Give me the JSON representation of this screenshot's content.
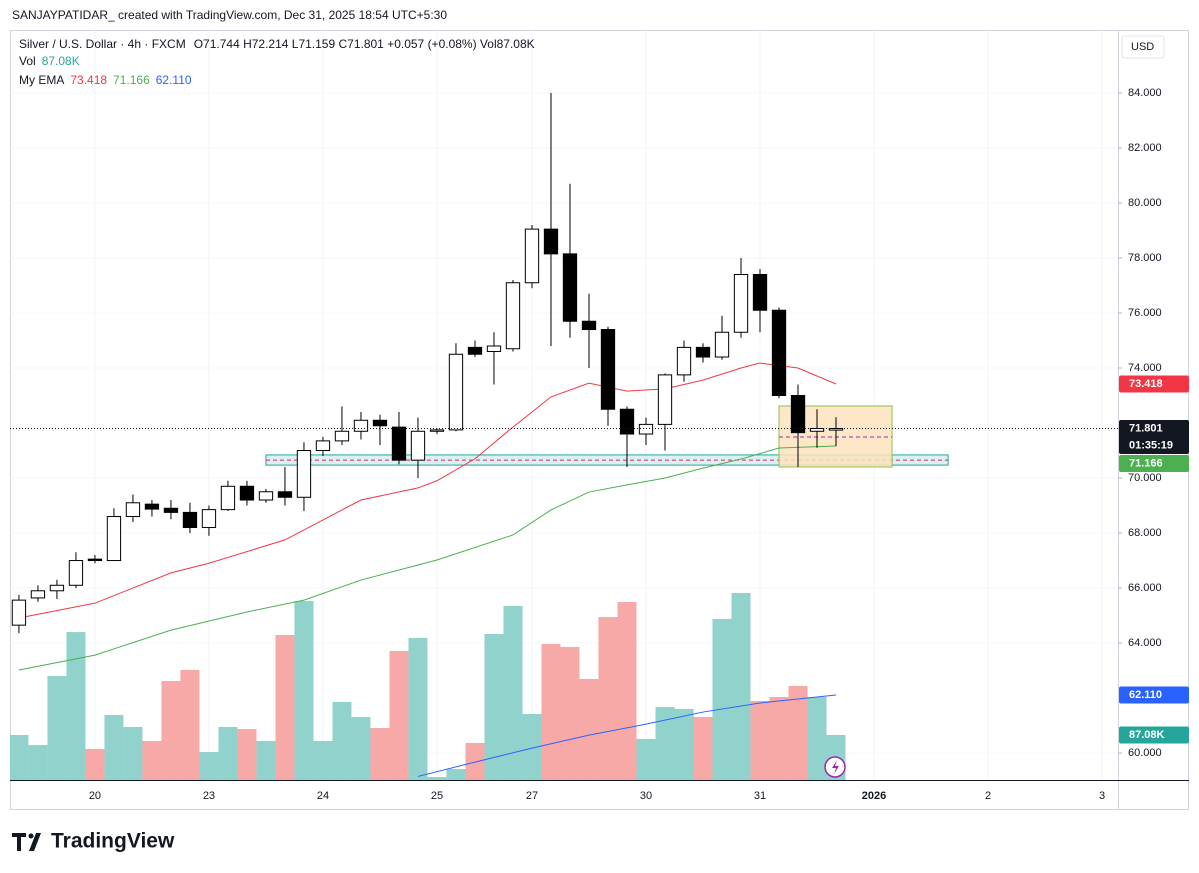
{
  "chart_data": {
    "type": "candlestick",
    "header": "SANJAYPATIDAR_ created with TradingView.com, Dec 31, 2025 18:54 UTC+5:30",
    "title": "Silver / U.S. Dollar · 4h · FXCM",
    "ohlc_text": "O71.744 H72.214 L71.159 C71.801 +0.057 (+0.08%) Vol87.08K",
    "currency": "USD",
    "countdown": "01:35:19",
    "brand": "TradingView",
    "xlim": [
      -0.47,
      57.84
    ],
    "ylim": [
      59.02,
      86.29
    ],
    "x": [
      0,
      1,
      2,
      3,
      4,
      5,
      6,
      7,
      8,
      9,
      10,
      11,
      12,
      13,
      14,
      15,
      16,
      17,
      18,
      19,
      20,
      21,
      22,
      23,
      24,
      25,
      26,
      27,
      28,
      29,
      30,
      31,
      32,
      33,
      34,
      35,
      36,
      37,
      38,
      39,
      40,
      41,
      42,
      43
    ],
    "xticks": [
      {
        "value": 4,
        "label": "20"
      },
      {
        "value": 10,
        "label": "23"
      },
      {
        "value": 16,
        "label": "24"
      },
      {
        "value": 22,
        "label": "25"
      },
      {
        "value": 27,
        "label": "27"
      },
      {
        "value": 33,
        "label": "30"
      },
      {
        "value": 39,
        "label": "31"
      },
      {
        "value": 45,
        "label": "2026"
      },
      {
        "value": 51,
        "label": "2"
      },
      {
        "value": 57,
        "label": "3"
      }
    ],
    "yticks": [
      {
        "value": 60,
        "label": "60.000"
      },
      {
        "value": 64,
        "label": "64.000"
      },
      {
        "value": 66,
        "label": "66.000"
      },
      {
        "value": 68,
        "label": "68.000"
      },
      {
        "value": 70,
        "label": "70.000"
      },
      {
        "value": 74,
        "label": "74.000"
      },
      {
        "value": 76,
        "label": "76.000"
      },
      {
        "value": 78,
        "label": "78.000"
      },
      {
        "value": 80,
        "label": "80.000"
      },
      {
        "value": 82,
        "label": "82.000"
      },
      {
        "value": 84,
        "label": "84.000"
      }
    ],
    "grid": true,
    "up_color": "#ffffff",
    "down_color": "#000000",
    "open": [
      64.65,
      65.64,
      65.9,
      66.1,
      67.05,
      67.0,
      68.6,
      69.05,
      68.9,
      68.75,
      68.2,
      68.85,
      69.7,
      69.2,
      69.5,
      69.3,
      71.0,
      71.35,
      71.7,
      72.1,
      71.85,
      70.65,
      71.7,
      71.75,
      74.75,
      74.6,
      74.7,
      77.1,
      79.05,
      78.15,
      75.7,
      75.4,
      72.5,
      71.6,
      71.95,
      73.75,
      74.75,
      74.4,
      75.3,
      77.4,
      76.1,
      73.0,
      71.7,
      71.744
    ],
    "high": [
      65.75,
      66.1,
      66.3,
      67.3,
      67.2,
      68.9,
      69.4,
      69.2,
      69.2,
      69.1,
      69.0,
      69.9,
      69.9,
      69.6,
      70.4,
      71.3,
      71.5,
      72.6,
      72.4,
      72.3,
      72.4,
      72.2,
      71.8,
      74.9,
      75.0,
      75.3,
      77.2,
      79.2,
      84.0,
      80.7,
      76.7,
      75.5,
      72.6,
      72.2,
      73.8,
      75.0,
      74.9,
      75.9,
      78.0,
      77.6,
      76.2,
      73.4,
      72.5,
      72.214
    ],
    "low": [
      64.36,
      65.5,
      65.6,
      66.0,
      66.9,
      67.0,
      68.4,
      68.6,
      68.5,
      68.0,
      67.9,
      68.8,
      69.0,
      69.1,
      69.0,
      68.8,
      70.8,
      71.2,
      71.4,
      71.2,
      70.5,
      70.0,
      71.6,
      71.7,
      74.4,
      73.4,
      74.6,
      76.9,
      74.8,
      75.1,
      74.0,
      71.9,
      70.4,
      71.2,
      71.0,
      73.5,
      74.2,
      74.3,
      75.1,
      75.3,
      72.9,
      70.4,
      71.1,
      71.159
    ],
    "close": [
      65.56,
      65.9,
      66.1,
      67.0,
      67.0,
      68.6,
      69.1,
      68.87,
      68.75,
      68.2,
      68.85,
      69.7,
      69.2,
      69.5,
      69.3,
      71.0,
      71.35,
      71.7,
      72.1,
      71.9,
      70.65,
      71.7,
      71.75,
      74.5,
      74.5,
      74.8,
      77.1,
      79.05,
      78.15,
      75.7,
      75.4,
      72.5,
      71.6,
      71.95,
      73.75,
      74.75,
      74.4,
      75.3,
      77.4,
      76.1,
      73.0,
      71.65,
      71.8,
      71.801
    ],
    "volume": {
      "name": "Vol",
      "vlim": [
        0,
        1450000
      ],
      "up_color": "#92d2cc",
      "down_color": "#f7a9a7",
      "values": [
        87000,
        67700,
        201000,
        286000,
        60000,
        125700,
        102500,
        75400,
        191400,
        212700,
        54100,
        102500,
        98600,
        75400,
        280300,
        346100,
        75400,
        150800,
        121800,
        100500,
        249400,
        274500,
        5800,
        21300,
        71500,
        282300,
        336400,
        127600,
        262900,
        257100,
        195300,
        315100,
        344100,
        79300,
        141100,
        137300,
        121800,
        311300,
        361500,
        152700,
        160500,
        181700,
        160500,
        87080
      ],
      "value_labels": [
        null,
        null,
        null,
        null,
        null,
        null,
        null,
        null,
        null,
        null,
        null,
        null,
        null,
        null,
        null,
        null,
        null,
        null,
        null,
        null,
        null,
        null,
        null,
        null,
        null,
        null,
        null,
        null,
        null,
        null,
        null,
        null,
        null,
        null,
        null,
        null,
        null,
        null,
        null,
        null,
        null,
        null,
        null,
        "87.08K"
      ]
    },
    "ema": {
      "name": "My EMA",
      "series": [
        {
          "color": "#f23645",
          "x": [
            0,
            4,
            8,
            10,
            14,
            18,
            21,
            22,
            24,
            26,
            28,
            30,
            32,
            34,
            36,
            38,
            39,
            41,
            43
          ],
          "values": [
            64.91,
            65.45,
            66.55,
            66.9,
            67.75,
            69.2,
            69.64,
            69.9,
            70.7,
            71.85,
            72.95,
            73.45,
            73.16,
            73.24,
            73.56,
            74.0,
            74.18,
            74.0,
            73.418
          ]
        },
        {
          "color": "#4caf50",
          "x": [
            0,
            4,
            8,
            12,
            15,
            18,
            22,
            26,
            28,
            30,
            32,
            34,
            36,
            38,
            40,
            43
          ],
          "values": [
            63.02,
            63.56,
            64.47,
            65.13,
            65.56,
            66.29,
            67.02,
            67.93,
            68.84,
            69.49,
            69.75,
            70.0,
            70.36,
            70.69,
            71.09,
            71.166
          ]
        },
        {
          "color": "#2962ff",
          "x": [
            21,
            24,
            27,
            30,
            33,
            36,
            39,
            43
          ],
          "values": [
            59.15,
            59.67,
            60.18,
            60.65,
            61.05,
            61.49,
            61.82,
            62.11
          ],
          "value_labels": [
            null,
            null,
            null,
            null,
            null,
            null,
            null,
            "62.110"
          ]
        }
      ]
    },
    "zones": [
      {
        "x": [
          13.0,
          48.9
        ],
        "y": [
          70.47,
          70.84
        ],
        "line": 70.65,
        "fill": "#d4eef1",
        "stroke": "#26a69a",
        "line_color": "#e91e63"
      },
      {
        "x": [
          40.0,
          45.95
        ],
        "y": [
          70.4,
          72.62
        ],
        "line": 71.49,
        "fill": "#fde3bd",
        "stroke": "#8bc34a",
        "line_color": "#9c27b0"
      }
    ]
  }
}
